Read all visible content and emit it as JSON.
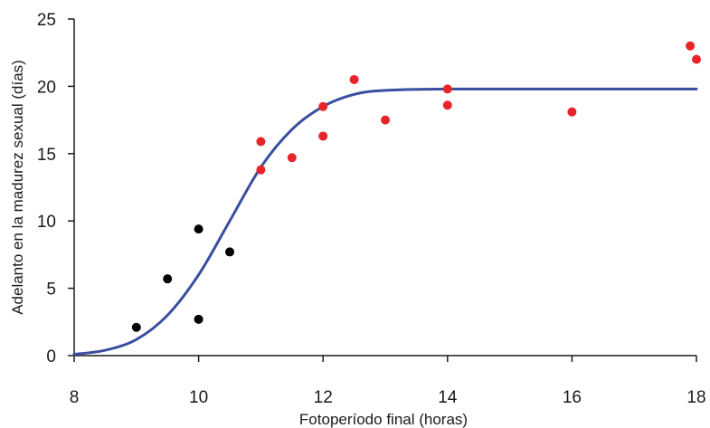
{
  "chart_data": {
    "type": "scatter",
    "title": "",
    "xlabel": "Fotoperíodo final (horas)",
    "ylabel": "Adelanto en la madurez sexual (días)",
    "xlim": [
      8,
      18
    ],
    "ylim": [
      0,
      25
    ],
    "xticks": [
      8,
      10,
      12,
      14,
      16,
      18
    ],
    "yticks": [
      0,
      5,
      10,
      15,
      20,
      25
    ],
    "grid": false,
    "legend": "none",
    "series": [
      {
        "kind": "scatter",
        "color": "#000000",
        "points": [
          {
            "x": 9.0,
            "y": 2.1
          },
          {
            "x": 9.5,
            "y": 5.7
          },
          {
            "x": 10.0,
            "y": 9.4
          },
          {
            "x": 10.0,
            "y": 2.7
          },
          {
            "x": 10.5,
            "y": 7.7
          }
        ]
      },
      {
        "kind": "scatter",
        "color": "#e8242a",
        "points": [
          {
            "x": 11.0,
            "y": 15.9
          },
          {
            "x": 11.0,
            "y": 13.8
          },
          {
            "x": 11.5,
            "y": 14.7
          },
          {
            "x": 12.0,
            "y": 18.5
          },
          {
            "x": 12.0,
            "y": 16.3
          },
          {
            "x": 12.5,
            "y": 20.5
          },
          {
            "x": 13.0,
            "y": 17.5
          },
          {
            "x": 14.0,
            "y": 19.8
          },
          {
            "x": 14.0,
            "y": 18.6
          },
          {
            "x": 16.0,
            "y": 18.1
          },
          {
            "x": 17.9,
            "y": 23.0
          },
          {
            "x": 18.0,
            "y": 22.0
          }
        ]
      },
      {
        "kind": "line",
        "color": "#3a4ea0",
        "points": [
          {
            "x": 8.0,
            "y": 0.1
          },
          {
            "x": 8.5,
            "y": 0.4
          },
          {
            "x": 9.0,
            "y": 1.2
          },
          {
            "x": 9.5,
            "y": 3.0
          },
          {
            "x": 10.0,
            "y": 6.0
          },
          {
            "x": 10.5,
            "y": 10.0
          },
          {
            "x": 11.0,
            "y": 14.0
          },
          {
            "x": 11.5,
            "y": 16.8
          },
          {
            "x": 12.0,
            "y": 18.5
          },
          {
            "x": 12.5,
            "y": 19.4
          },
          {
            "x": 13.0,
            "y": 19.7
          },
          {
            "x": 14.0,
            "y": 19.8
          },
          {
            "x": 16.0,
            "y": 19.8
          },
          {
            "x": 18.0,
            "y": 19.8
          }
        ]
      }
    ]
  }
}
